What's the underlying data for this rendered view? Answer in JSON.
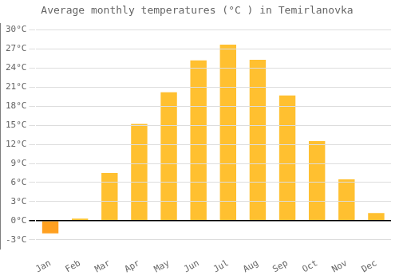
{
  "chart_data": {
    "type": "bar",
    "title": "Average monthly temperatures (°C ) in Temirlanovka",
    "categories": [
      "Jan",
      "Feb",
      "Mar",
      "Apr",
      "May",
      "Jun",
      "Jul",
      "Aug",
      "Sep",
      "Oct",
      "Nov",
      "Dec"
    ],
    "values": [
      -2.0,
      0.3,
      7.5,
      15.2,
      20.2,
      25.2,
      27.7,
      25.3,
      19.7,
      12.5,
      6.5,
      1.2
    ],
    "colors": [
      "#FFA020",
      "#FFC030",
      "#FFC030",
      "#FFC030",
      "#FFC030",
      "#FFC030",
      "#FFC030",
      "#FFC030",
      "#FFC030",
      "#FFC030",
      "#FFC030",
      "#FFC030"
    ],
    "ylim": [
      -4.5,
      31
    ],
    "yticks": [
      {
        "value": -3,
        "label": "-3°C"
      },
      {
        "value": 0,
        "label": "0°C"
      },
      {
        "value": 3,
        "label": "3°C"
      },
      {
        "value": 6,
        "label": "6°C"
      },
      {
        "value": 9,
        "label": "9°C"
      },
      {
        "value": 12,
        "label": "12°C"
      },
      {
        "value": 15,
        "label": "15°C"
      },
      {
        "value": 18,
        "label": "18°C"
      },
      {
        "value": 21,
        "label": "21°C"
      },
      {
        "value": 24,
        "label": "24°C"
      },
      {
        "value": 27,
        "label": "27°C"
      },
      {
        "value": 30,
        "label": "30°C"
      }
    ],
    "grid": true
  }
}
